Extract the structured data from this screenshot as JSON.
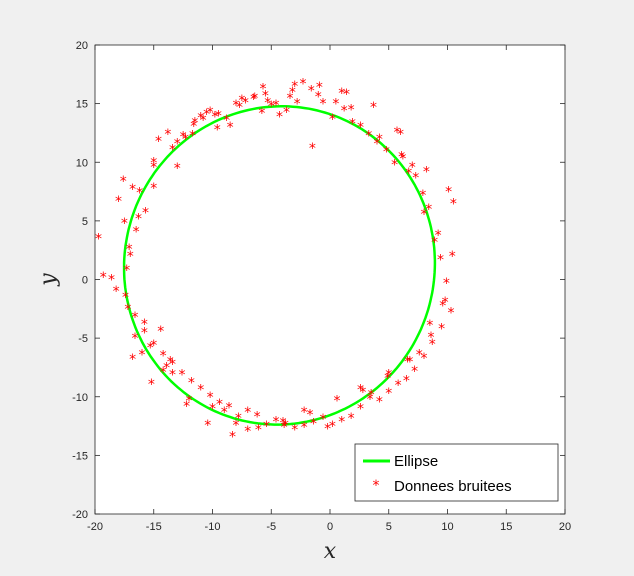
{
  "chart_data": {
    "type": "scatter",
    "xlabel": "x",
    "ylabel": "y",
    "xlim": [
      -20,
      20
    ],
    "ylim": [
      -20,
      20
    ],
    "xticks": [
      -20,
      -15,
      -10,
      -5,
      0,
      5,
      10,
      15,
      20
    ],
    "yticks": [
      -20,
      -15,
      -10,
      -5,
      0,
      5,
      10,
      15,
      20
    ],
    "grid": false,
    "legend_position": "bottom-right",
    "series": [
      {
        "name": "Ellipse",
        "kind": "line",
        "color": "#00ff00",
        "center": [
          -4.3,
          1.2
        ],
        "semi_axes": [
          13.2,
          13.6
        ],
        "angle_deg": -15
      },
      {
        "name": "Donnees bruitees",
        "kind": "scatter",
        "marker": "asterisk",
        "color": "#ff0000",
        "x": [
          -19.7,
          -18.2,
          -18.0,
          -17.6,
          -17.5,
          -17.2,
          -17.0,
          -16.8,
          -16.6,
          -16.3,
          -16.0,
          -15.8,
          -15.3,
          -15.0,
          -14.6,
          -14.2,
          -13.8,
          -13.4,
          -13.0,
          -12.5,
          -12.0,
          -11.5,
          -11.0,
          -10.5,
          -10.0,
          -9.6,
          -9.0,
          -8.5,
          -8.0,
          -7.5,
          -7.0,
          -6.4,
          -5.8,
          -5.3,
          -4.6,
          -4.0,
          -3.4,
          -2.8,
          -2.2,
          -1.6,
          -1.0,
          -0.2,
          0.5,
          1.2,
          1.9,
          2.6,
          3.5,
          4.2,
          5.0,
          5.7,
          6.2,
          6.6,
          7.0,
          7.6,
          8.0,
          8.5,
          9.2,
          9.6,
          10.1,
          10.5,
          -19.3,
          -18.6,
          -17.3,
          -16.5,
          -15.7,
          -15.0,
          -14.4,
          -13.6,
          -13.0,
          -12.3,
          -11.6,
          -10.8,
          -10.2,
          -9.5,
          -8.8,
          -8.0,
          -7.2,
          -6.5,
          -5.7,
          -5.0,
          -4.3,
          -3.7,
          -3.0,
          -2.3,
          -1.5,
          -0.6,
          0.2,
          1.0,
          1.8,
          2.6,
          3.3,
          4.0,
          4.8,
          5.5,
          6.1,
          6.7,
          7.3,
          7.9,
          8.4,
          8.9,
          9.4,
          9.9,
          10.3,
          9.5,
          8.7,
          8.0,
          7.2,
          6.5,
          5.8,
          5.0,
          4.2,
          3.4,
          2.6,
          1.8,
          1.0,
          0.2,
          -0.6,
          -1.4,
          -2.2,
          -3.0,
          -3.8,
          -4.6,
          -5.4,
          -6.2,
          -7.0,
          -7.8,
          -8.6,
          -9.4,
          -10.2,
          -11.0,
          -11.8,
          -12.6,
          -13.4,
          -14.2,
          -15.0,
          -15.8,
          -16.6,
          -17.4,
          -16.8,
          -15.2,
          -13.9,
          -12.2,
          -10.4,
          -8.3,
          -6.1,
          -3.9,
          -1.7,
          0.6,
          2.8,
          4.9,
          6.8,
          8.6,
          9.8,
          10.4,
          8.2,
          6.0,
          3.7,
          1.4,
          -0.9,
          -3.2,
          -5.5,
          -7.7,
          -9.8,
          -11.7,
          -13.4,
          -15.0,
          -16.2,
          -17.1
        ],
        "y": [
          3.5,
          -1.0,
          6.7,
          8.4,
          4.8,
          -2.5,
          2.0,
          7.7,
          -5.0,
          5.2,
          -6.4,
          -3.8,
          -5.8,
          10.0,
          11.8,
          -7.9,
          12.4,
          -8.1,
          9.5,
          12.2,
          -10.3,
          13.4,
          13.8,
          14.1,
          -11.0,
          12.8,
          -11.3,
          13.0,
          -12.4,
          15.3,
          -12.9,
          15.5,
          14.2,
          15.1,
          14.9,
          -12.2,
          15.5,
          15.0,
          -11.3,
          16.1,
          15.6,
          -12.7,
          15.0,
          14.4,
          13.3,
          -9.4,
          -9.8,
          12.0,
          -8.1,
          12.6,
          10.3,
          -7.0,
          9.6,
          -6.4,
          5.6,
          -3.9,
          3.8,
          -2.2,
          7.5,
          6.5,
          0.2,
          0.0,
          0.8,
          4.1,
          5.7,
          7.8,
          -4.4,
          -7.0,
          11.6,
          12.0,
          13.1,
          13.6,
          14.3,
          14.0,
          13.6,
          14.9,
          15.1,
          15.4,
          16.3,
          14.8,
          13.9,
          14.3,
          16.5,
          16.7,
          11.2,
          15.0,
          13.7,
          15.9,
          14.5,
          13.0,
          12.3,
          11.6,
          10.9,
          9.8,
          10.5,
          9.1,
          8.7,
          7.2,
          6.0,
          3.2,
          1.7,
          -0.3,
          -2.8,
          -4.2,
          -5.5,
          -6.7,
          -7.8,
          -8.6,
          -9.0,
          -9.7,
          -10.4,
          -10.2,
          -11.0,
          -11.8,
          -12.1,
          -12.5,
          -11.9,
          -12.3,
          -12.6,
          -12.8,
          -12.4,
          -12.1,
          -12.5,
          -11.7,
          -11.3,
          -11.8,
          -10.9,
          -10.6,
          -10.0,
          -9.4,
          -8.8,
          -8.1,
          -7.2,
          -6.5,
          -5.6,
          -4.5,
          -3.2,
          -1.5,
          -6.8,
          -8.9,
          -7.5,
          -10.8,
          -12.4,
          -13.4,
          -12.8,
          -12.6,
          -11.5,
          -10.3,
          -9.6,
          -8.4,
          -7.0,
          -4.9,
          -1.9,
          2.0,
          9.2,
          12.4,
          14.7,
          15.8,
          16.4,
          16.0,
          15.7,
          14.7,
          13.9,
          12.3,
          11.1,
          9.6,
          7.4,
          2.6
        ]
      }
    ]
  }
}
